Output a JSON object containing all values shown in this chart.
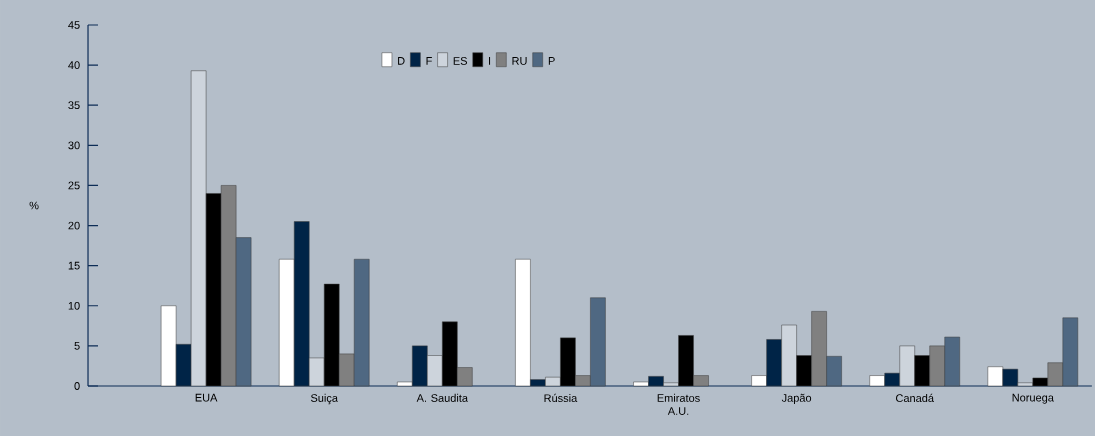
{
  "chart_data": {
    "type": "bar",
    "ylabel": "%",
    "categories": [
      "EUA",
      "Suiça",
      "A. Saudita",
      "Rússia",
      "Emiratos A.U.",
      "Japão",
      "Canadá",
      "Noruega"
    ],
    "series": [
      {
        "name": "D",
        "color": "#ffffff",
        "values": [
          10,
          15.8,
          0.5,
          15.8,
          0.5,
          1.3,
          1.3,
          2.4
        ]
      },
      {
        "name": "F",
        "color": "#002447",
        "values": [
          5.2,
          20.5,
          5,
          0.8,
          1.2,
          5.8,
          1.6,
          2.1
        ]
      },
      {
        "name": "ES",
        "color": "#cdd4dc",
        "values": [
          39.3,
          3.5,
          3.8,
          1.1,
          0.4,
          7.6,
          5,
          0.4
        ]
      },
      {
        "name": "I",
        "color": "#000000",
        "values": [
          24,
          12.7,
          8,
          6,
          6.3,
          3.8,
          3.8,
          1
        ]
      },
      {
        "name": "RU",
        "color": "#808080",
        "values": [
          25,
          4,
          2.3,
          1.3,
          1.3,
          9.3,
          5,
          2.9
        ]
      },
      {
        "name": "P",
        "color": "#4f6882",
        "values": [
          18.5,
          15.8,
          null,
          11,
          null,
          3.7,
          6.1,
          8.5
        ]
      }
    ],
    "ylim": [
      0,
      45
    ],
    "yticks": [
      0,
      5,
      10,
      15,
      20,
      25,
      30,
      35,
      40,
      45
    ],
    "legend": "top"
  }
}
